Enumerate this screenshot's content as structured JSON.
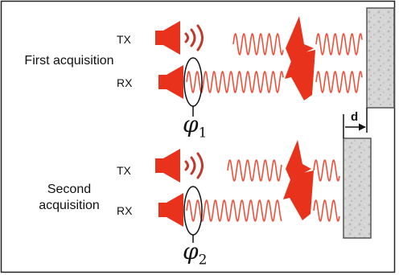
{
  "first": {
    "acquisition_label": "First acquisition",
    "tx_label": "TX",
    "rx_label": "RX",
    "phase_symbol": "φ",
    "phase_index": "1"
  },
  "second": {
    "acquisition_label": "Second acquisition",
    "tx_label": "TX",
    "rx_label": "RX",
    "phase_symbol": "φ",
    "phase_index": "2"
  },
  "displacement_label": "d",
  "colors": {
    "speaker": "#e8321c",
    "wave": "#f0503a",
    "sound_arcs": "#c0392b",
    "wall_fill": "#d8d8d8",
    "wall_stroke": "#555555"
  }
}
